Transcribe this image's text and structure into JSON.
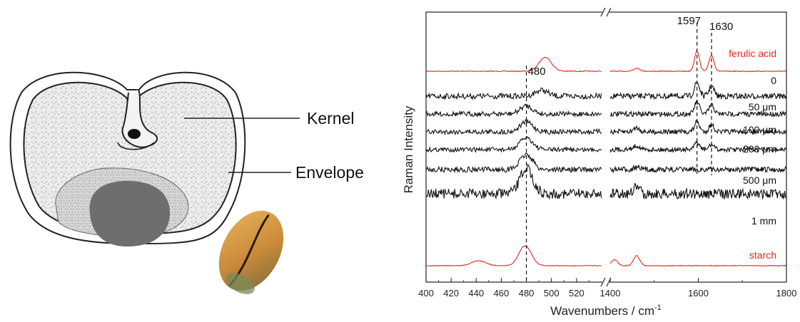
{
  "diagram": {
    "labels": {
      "kernel": "Kernel",
      "envelope": "Envelope"
    }
  },
  "chart_data": {
    "type": "line",
    "title": "",
    "xlabel": "Wavenumbers / cm",
    "xlabel_sup": "-1",
    "ylabel": "Raman Intensity",
    "x_axis_break": true,
    "x_segments": [
      {
        "range": [
          400,
          540
        ],
        "ticks": [
          "400",
          "420",
          "440",
          "460",
          "480",
          "500",
          "520"
        ]
      },
      {
        "range": [
          1400,
          1800
        ],
        "ticks": [
          "1400",
          "1600",
          "1800"
        ]
      }
    ],
    "peak_labels": [
      "480",
      "1597",
      "1630"
    ],
    "reference_lines_x": [
      480,
      1597,
      1630
    ],
    "series": [
      {
        "name": "ferulic acid",
        "color": "#e8281c",
        "peaks_segment1": [
          {
            "x": 495,
            "height": 0.7
          }
        ],
        "peaks_segment2": [
          {
            "x": 1597,
            "height": 1.0
          },
          {
            "x": 1630,
            "height": 0.8
          },
          {
            "x": 1460,
            "height": 0.15
          }
        ]
      },
      {
        "name": "0",
        "color": "#111111",
        "peaks_segment1": [
          {
            "x": 492,
            "height": 0.3
          }
        ],
        "peaks_segment2": [
          {
            "x": 1597,
            "height": 0.7
          },
          {
            "x": 1630,
            "height": 0.5
          }
        ]
      },
      {
        "name": "50 μm",
        "color": "#111111",
        "peaks_segment1": [
          {
            "x": 480,
            "height": 0.4
          }
        ],
        "peaks_segment2": [
          {
            "x": 1597,
            "height": 0.6
          },
          {
            "x": 1630,
            "height": 0.45
          }
        ]
      },
      {
        "name": "100 μm",
        "color": "#111111",
        "peaks_segment1": [
          {
            "x": 480,
            "height": 0.5
          }
        ],
        "peaks_segment2": [
          {
            "x": 1597,
            "height": 0.5
          },
          {
            "x": 1630,
            "height": 0.35
          },
          {
            "x": 1460,
            "height": 0.2
          }
        ]
      },
      {
        "name": "200 μm",
        "color": "#111111",
        "peaks_segment1": [
          {
            "x": 480,
            "height": 0.6
          }
        ],
        "peaks_segment2": [
          {
            "x": 1597,
            "height": 0.35
          },
          {
            "x": 1630,
            "height": 0.25
          },
          {
            "x": 1460,
            "height": 0.2
          }
        ]
      },
      {
        "name": "500 μm",
        "color": "#111111",
        "peaks_segment1": [
          {
            "x": 480,
            "height": 0.75
          }
        ],
        "peaks_segment2": [
          {
            "x": 1460,
            "height": 0.1
          }
        ]
      },
      {
        "name": "1 mm",
        "color": "#111111",
        "peaks_segment1": [
          {
            "x": 480,
            "height": 1.3
          }
        ],
        "peaks_segment2": [
          {
            "x": 1460,
            "height": 0.35
          }
        ]
      },
      {
        "name": "starch",
        "color": "#e8281c",
        "peaks_segment1": [
          {
            "x": 479,
            "height": 1.0
          },
          {
            "x": 442,
            "height": 0.25
          }
        ],
        "peaks_segment2": [
          {
            "x": 1460,
            "height": 0.5
          },
          {
            "x": 1410,
            "height": 0.3
          }
        ]
      }
    ]
  }
}
